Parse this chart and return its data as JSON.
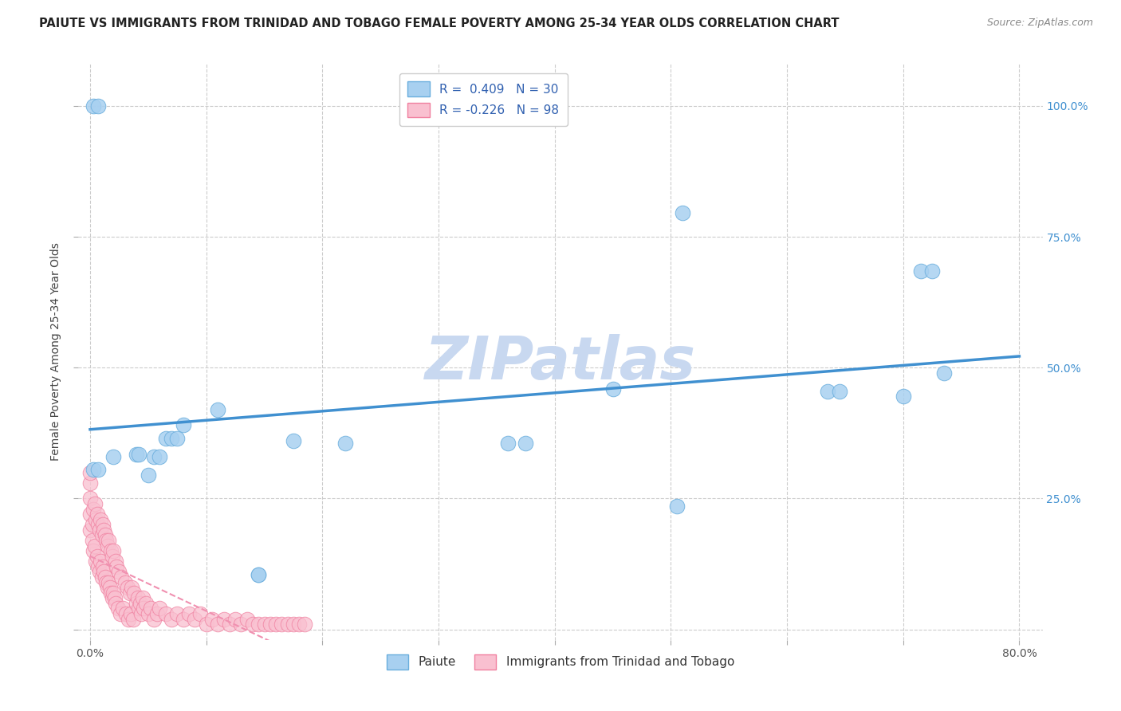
{
  "title": "PAIUTE VS IMMIGRANTS FROM TRINIDAD AND TOBAGO FEMALE POVERTY AMONG 25-34 YEAR OLDS CORRELATION CHART",
  "source": "Source: ZipAtlas.com",
  "ylabel": "Female Poverty Among 25-34 Year Olds",
  "xlim": [
    -0.01,
    0.82
  ],
  "ylim": [
    -0.02,
    1.08
  ],
  "xticks": [
    0.0,
    0.1,
    0.2,
    0.3,
    0.4,
    0.5,
    0.6,
    0.7,
    0.8
  ],
  "xticklabels": [
    "0.0%",
    "",
    "",
    "",
    "",
    "",
    "",
    "",
    "80.0%"
  ],
  "ytick_positions": [
    0.0,
    0.25,
    0.5,
    0.75,
    1.0
  ],
  "ytick_labels": [
    "",
    "25.0%",
    "50.0%",
    "75.0%",
    "100.0%"
  ],
  "paiute_R": 0.409,
  "paiute_N": 30,
  "pink_R": -0.226,
  "pink_N": 98,
  "paiute_color": "#a8d0f0",
  "pink_color": "#f9c0d0",
  "paiute_edge_color": "#6aaedd",
  "pink_edge_color": "#f080a0",
  "paiute_line_color": "#4090d0",
  "pink_line_color": "#f090b0",
  "legend_label_blue": "Paiute",
  "legend_label_pink": "Immigrants from Trinidad and Tobago",
  "paiute_x": [
    0.003,
    0.007,
    0.003,
    0.007,
    0.02,
    0.05,
    0.08,
    0.11,
    0.145,
    0.145,
    0.175,
    0.22,
    0.36,
    0.375,
    0.45,
    0.505,
    0.51,
    0.635,
    0.645,
    0.7,
    0.715,
    0.725,
    0.735,
    0.04,
    0.042,
    0.055,
    0.06,
    0.065,
    0.07,
    0.075
  ],
  "paiute_y": [
    1.0,
    1.0,
    0.305,
    0.305,
    0.33,
    0.295,
    0.39,
    0.42,
    0.105,
    0.105,
    0.36,
    0.355,
    0.355,
    0.355,
    0.46,
    0.235,
    0.795,
    0.455,
    0.455,
    0.445,
    0.685,
    0.685,
    0.49,
    0.335,
    0.335,
    0.33,
    0.33,
    0.365,
    0.365,
    0.365
  ],
  "pink_x": [
    0.0,
    0.0,
    0.0,
    0.0,
    0.0,
    0.002,
    0.002,
    0.003,
    0.003,
    0.004,
    0.004,
    0.005,
    0.005,
    0.006,
    0.006,
    0.007,
    0.007,
    0.008,
    0.008,
    0.009,
    0.009,
    0.01,
    0.01,
    0.011,
    0.011,
    0.012,
    0.012,
    0.013,
    0.013,
    0.014,
    0.014,
    0.015,
    0.015,
    0.016,
    0.016,
    0.017,
    0.018,
    0.018,
    0.019,
    0.019,
    0.02,
    0.02,
    0.021,
    0.022,
    0.022,
    0.023,
    0.024,
    0.025,
    0.026,
    0.027,
    0.028,
    0.03,
    0.031,
    0.032,
    0.033,
    0.034,
    0.035,
    0.036,
    0.037,
    0.038,
    0.04,
    0.041,
    0.042,
    0.043,
    0.044,
    0.045,
    0.046,
    0.048,
    0.05,
    0.052,
    0.055,
    0.058,
    0.06,
    0.065,
    0.07,
    0.075,
    0.08,
    0.085,
    0.09,
    0.095,
    0.1,
    0.105,
    0.11,
    0.115,
    0.12,
    0.125,
    0.13,
    0.135,
    0.14,
    0.145,
    0.15,
    0.155,
    0.16,
    0.165,
    0.17,
    0.175,
    0.18,
    0.185
  ],
  "pink_y": [
    0.19,
    0.22,
    0.25,
    0.28,
    0.3,
    0.17,
    0.2,
    0.15,
    0.23,
    0.16,
    0.24,
    0.13,
    0.21,
    0.14,
    0.22,
    0.12,
    0.2,
    0.11,
    0.19,
    0.13,
    0.21,
    0.1,
    0.18,
    0.12,
    0.2,
    0.11,
    0.19,
    0.1,
    0.18,
    0.09,
    0.17,
    0.08,
    0.16,
    0.09,
    0.17,
    0.08,
    0.07,
    0.15,
    0.06,
    0.14,
    0.07,
    0.15,
    0.06,
    0.13,
    0.05,
    0.12,
    0.04,
    0.11,
    0.03,
    0.1,
    0.04,
    0.09,
    0.03,
    0.08,
    0.02,
    0.07,
    0.03,
    0.08,
    0.02,
    0.07,
    0.05,
    0.06,
    0.04,
    0.05,
    0.03,
    0.06,
    0.04,
    0.05,
    0.03,
    0.04,
    0.02,
    0.03,
    0.04,
    0.03,
    0.02,
    0.03,
    0.02,
    0.03,
    0.02,
    0.03,
    0.01,
    0.02,
    0.01,
    0.02,
    0.01,
    0.02,
    0.01,
    0.02,
    0.01,
    0.01,
    0.01,
    0.01,
    0.01,
    0.01,
    0.01,
    0.01,
    0.01,
    0.01
  ],
  "background_color": "#ffffff",
  "grid_color": "#cccccc",
  "watermark_text": "ZIPatlas",
  "watermark_color": "#c8d8f0",
  "title_fontsize": 10.5,
  "axis_label_fontsize": 10,
  "tick_fontsize": 10,
  "legend_fontsize": 11
}
